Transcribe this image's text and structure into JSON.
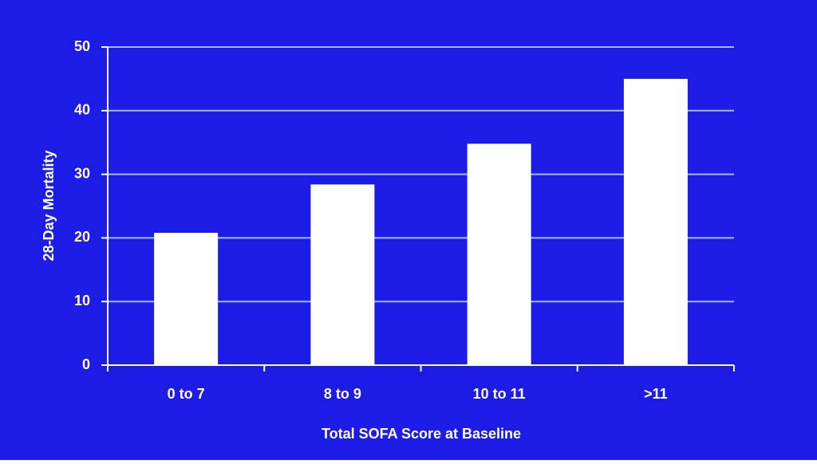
{
  "chart_data": {
    "type": "bar",
    "x_label": "Total SOFA Score at Baseline",
    "y_label": "28-Day Mortality",
    "categories": [
      "0 to 7",
      "8 to 9",
      "10 to 11",
      ">11"
    ],
    "values": [
      20.8,
      28.4,
      34.8,
      45
    ],
    "color": "#ffffff",
    "background": "#1c1ce6",
    "ylim": [
      0,
      50
    ],
    "yticks": [
      0,
      10,
      20,
      30,
      40,
      50
    ],
    "grid": true
  }
}
